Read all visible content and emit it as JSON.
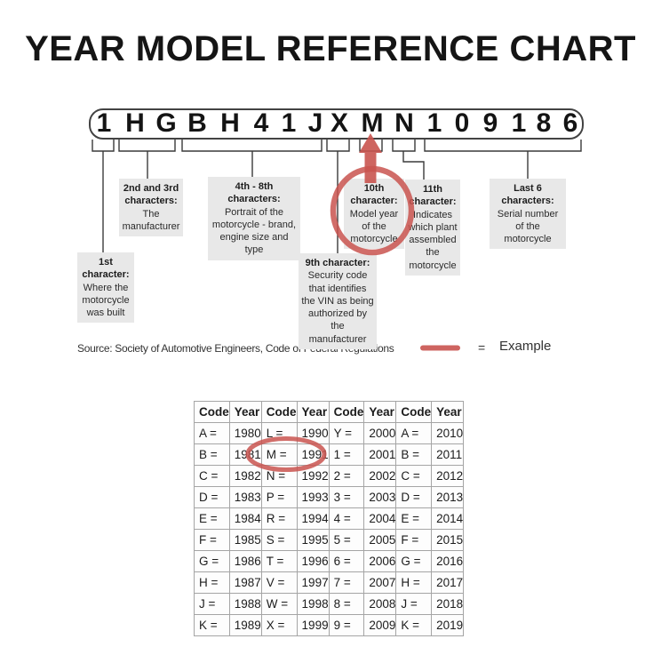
{
  "title": "YEAR MODEL REFERENCE CHART",
  "vin": {
    "characters": [
      "1",
      "H",
      "G",
      "B",
      "H",
      "4",
      "1",
      "J",
      "X",
      "M",
      "N",
      "1",
      "0",
      "9",
      "1",
      "8",
      "6"
    ],
    "example_character": "M"
  },
  "callouts": [
    {
      "heading": "1st character:",
      "body": "Where the motorcycle was built"
    },
    {
      "heading": "2nd and 3rd characters:",
      "body": "The manufacturer"
    },
    {
      "heading": "4th - 8th characters:",
      "body": "Portrait of the motorcycle - brand, engine size and type"
    },
    {
      "heading": "9th character:",
      "body": "Security code that identifies the VIN as being authorized by the manufacturer"
    },
    {
      "heading": "10th character:",
      "body": "Model year of the motorcycle"
    },
    {
      "heading": "11th character:",
      "body": "Indicates which plant assembled the motorcycle"
    },
    {
      "heading": "Last 6 characters:",
      "body": "Serial number of the motorcycle"
    }
  ],
  "source": "Source:  Society of Automotive Engineers, Code of Federal Regulations",
  "legend": {
    "equals_sign": "=",
    "label": "Example"
  },
  "colors": {
    "accent_red": "#c9544f",
    "callout_bg": "#e8e8e8",
    "table_border": "#a5a5a5"
  },
  "table": {
    "headers": [
      "Code",
      "Year",
      "Code",
      "Year",
      "Code",
      "Year",
      "Code",
      "Year"
    ],
    "rows": [
      [
        "A =",
        "1980",
        "L =",
        "1990",
        "Y =",
        "2000",
        "A =",
        "2010"
      ],
      [
        "B =",
        "1981",
        "M =",
        "1991",
        "1 =",
        "2001",
        "B =",
        "2011"
      ],
      [
        "C =",
        "1982",
        "N =",
        "1992",
        "2 =",
        "2002",
        "C =",
        "2012"
      ],
      [
        "D =",
        "1983",
        "P =",
        "1993",
        "3 =",
        "2003",
        "D =",
        "2013"
      ],
      [
        "E =",
        "1984",
        "R =",
        "1994",
        "4 =",
        "2004",
        "E =",
        "2014"
      ],
      [
        "F =",
        "1985",
        "S =",
        "1995",
        "5 =",
        "2005",
        "F =",
        "2015"
      ],
      [
        "G =",
        "1986",
        "T =",
        "1996",
        "6 =",
        "2006",
        "G =",
        "2016"
      ],
      [
        "H =",
        "1987",
        "V =",
        "1997",
        "7 =",
        "2007",
        "H =",
        "2017"
      ],
      [
        "J =",
        "1988",
        "W =",
        "1998",
        "8 =",
        "2008",
        "J =",
        "2018"
      ],
      [
        "K =",
        "1989",
        "X =",
        "1999",
        "9 =",
        "2009",
        "K =",
        "2019"
      ]
    ],
    "highlighted_example": {
      "code": "M =",
      "year": "1991"
    }
  }
}
